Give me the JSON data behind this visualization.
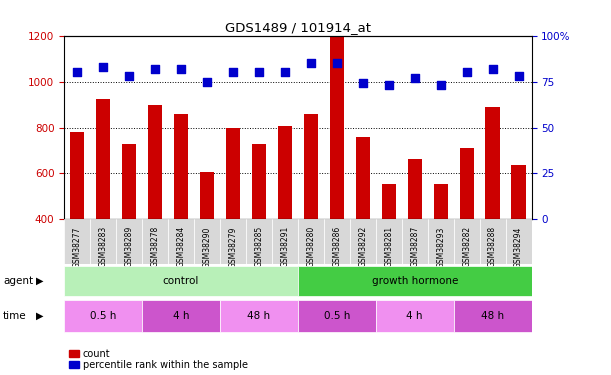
{
  "title": "GDS1489 / 101914_at",
  "samples": [
    "GSM38277",
    "GSM38283",
    "GSM38289",
    "GSM38278",
    "GSM38284",
    "GSM38290",
    "GSM38279",
    "GSM38285",
    "GSM38291",
    "GSM38280",
    "GSM38286",
    "GSM38292",
    "GSM38281",
    "GSM38287",
    "GSM38293",
    "GSM38282",
    "GSM38288",
    "GSM38294"
  ],
  "counts": [
    780,
    925,
    730,
    900,
    860,
    605,
    800,
    730,
    805,
    860,
    1200,
    760,
    555,
    665,
    555,
    710,
    890,
    635
  ],
  "percentiles": [
    80,
    83,
    78,
    82,
    82,
    75,
    80,
    80,
    80,
    85,
    85,
    74,
    73,
    77,
    73,
    80,
    82,
    78
  ],
  "bar_color": "#cc0000",
  "dot_color": "#0000cc",
  "ylim_left": [
    400,
    1200
  ],
  "ylim_right": [
    0,
    100
  ],
  "yticks_left": [
    400,
    600,
    800,
    1000,
    1200
  ],
  "yticks_right": [
    0,
    25,
    50,
    75,
    100
  ],
  "agent_groups": [
    {
      "label": "control",
      "start": 0,
      "end": 9,
      "color": "#b8f0b8"
    },
    {
      "label": "growth hormone",
      "start": 9,
      "end": 18,
      "color": "#44cc44"
    }
  ],
  "time_colors": [
    "#f090f0",
    "#cc55cc",
    "#f090f0",
    "#cc55cc",
    "#f090f0",
    "#cc55cc"
  ],
  "time_groups": [
    {
      "label": "0.5 h",
      "start": 0,
      "end": 3
    },
    {
      "label": "4 h",
      "start": 3,
      "end": 6
    },
    {
      "label": "48 h",
      "start": 6,
      "end": 9
    },
    {
      "label": "0.5 h",
      "start": 9,
      "end": 12
    },
    {
      "label": "4 h",
      "start": 12,
      "end": 15
    },
    {
      "label": "48 h",
      "start": 15,
      "end": 18
    }
  ],
  "legend_count_label": "count",
  "legend_pct_label": "percentile rank within the sample",
  "agent_label": "agent",
  "time_label": "time",
  "bg_color": "#ffffff",
  "tick_label_color_left": "#cc0000",
  "tick_label_color_right": "#0000cc",
  "grid_yticks": [
    600,
    800,
    1000
  ],
  "bar_width": 0.55,
  "dot_size": 28,
  "sample_box_color": "#d8d8d8"
}
